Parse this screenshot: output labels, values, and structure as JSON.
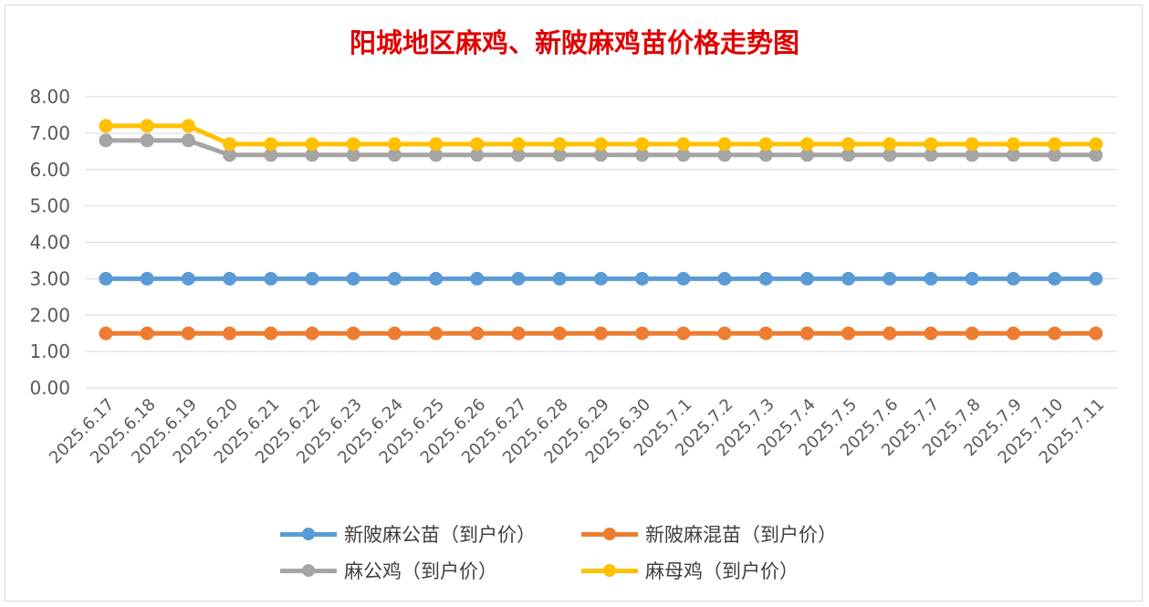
{
  "chart_data": {
    "type": "line",
    "title": "阳城地区麻鸡、新陂麻鸡苗价格走势图",
    "categories": [
      "2025.6.17",
      "2025.6.18",
      "2025.6.19",
      "2025.6.20",
      "2025.6.21",
      "2025.6.22",
      "2025.6.23",
      "2025.6.24",
      "2025.6.25",
      "2025.6.26",
      "2025.6.27",
      "2025.6.28",
      "2025.6.29",
      "2025.6.30",
      "2025.7.1",
      "2025.7.2",
      "2025.7.3",
      "2025.7.4",
      "2025.7.5",
      "2025.7.6",
      "2025.7.7",
      "2025.7.8",
      "2025.7.9",
      "2025.7.10",
      "2025.7.11"
    ],
    "ylim": [
      0,
      8
    ],
    "yticks": [
      "0.00",
      "1.00",
      "2.00",
      "3.00",
      "4.00",
      "5.00",
      "6.00",
      "7.00",
      "8.00"
    ],
    "grid": true,
    "legend_position": "bottom",
    "series": [
      {
        "name": "新陂麻公苗（到户价）",
        "color": "#5b9bd5",
        "values": [
          3,
          3,
          3,
          3,
          3,
          3,
          3,
          3,
          3,
          3,
          3,
          3,
          3,
          3,
          3,
          3,
          3,
          3,
          3,
          3,
          3,
          3,
          3,
          3,
          3
        ]
      },
      {
        "name": "新陂麻混苗（到户价）",
        "color": "#ed7d31",
        "values": [
          1.5,
          1.5,
          1.5,
          1.5,
          1.5,
          1.5,
          1.5,
          1.5,
          1.5,
          1.5,
          1.5,
          1.5,
          1.5,
          1.5,
          1.5,
          1.5,
          1.5,
          1.5,
          1.5,
          1.5,
          1.5,
          1.5,
          1.5,
          1.5,
          1.5
        ]
      },
      {
        "name": "麻公鸡（到户价）",
        "color": "#a5a5a5",
        "values": [
          6.8,
          6.8,
          6.8,
          6.4,
          6.4,
          6.4,
          6.4,
          6.4,
          6.4,
          6.4,
          6.4,
          6.4,
          6.4,
          6.4,
          6.4,
          6.4,
          6.4,
          6.4,
          6.4,
          6.4,
          6.4,
          6.4,
          6.4,
          6.4,
          6.4
        ]
      },
      {
        "name": "麻母鸡（到户价）",
        "color": "#ffc000",
        "values": [
          7.2,
          7.2,
          7.2,
          6.7,
          6.7,
          6.7,
          6.7,
          6.7,
          6.7,
          6.7,
          6.7,
          6.7,
          6.7,
          6.7,
          6.7,
          6.7,
          6.7,
          6.7,
          6.7,
          6.7,
          6.7,
          6.7,
          6.7,
          6.7,
          6.7
        ]
      }
    ]
  }
}
